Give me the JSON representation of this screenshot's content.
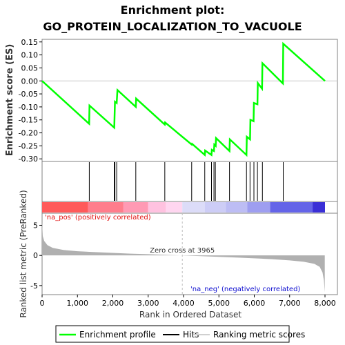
{
  "chart_data": {
    "type": "line",
    "title_line1": "Enrichment plot:",
    "title_line2": "GO_PROTEIN_LOCALIZATION_TO_VACUOLE",
    "es_ylabel": "Enrichment score (ES)",
    "metric_ylabel": "Ranked list metric (PreRanked)",
    "xlabel": "Rank in Ordered Dataset",
    "xlim": [
      0,
      8000
    ],
    "x_ticks": [
      0,
      1000,
      2000,
      3000,
      4000,
      5000,
      6000,
      7000,
      8000
    ],
    "x_tick_labels": [
      "0",
      "1,000",
      "2,000",
      "3,000",
      "4,000",
      "5,000",
      "6,000",
      "7,000",
      "8,000"
    ],
    "es_ylim": [
      -0.31,
      0.16
    ],
    "es_ticks": [
      0.15,
      0.1,
      0.05,
      0.0,
      -0.05,
      -0.1,
      -0.15,
      -0.2,
      -0.25,
      -0.3
    ],
    "es_tick_labels": [
      "0.15",
      "0.10",
      "0.05",
      "0.00",
      "-0.05",
      "-0.10",
      "-0.15",
      "-0.20",
      "-0.25",
      "-0.30"
    ],
    "metric_ylim": [
      -6.5,
      7
    ],
    "metric_ticks": [
      5,
      0,
      -5
    ],
    "metric_tick_labels": [
      "5",
      "0",
      "-5"
    ],
    "enrichment_profile": [
      [
        0,
        0.0
      ],
      [
        1330,
        -0.165
      ],
      [
        1340,
        -0.095
      ],
      [
        2040,
        -0.18
      ],
      [
        2050,
        -0.13
      ],
      [
        2060,
        -0.08
      ],
      [
        2110,
        -0.085
      ],
      [
        2130,
        -0.035
      ],
      [
        2650,
        -0.1
      ],
      [
        2660,
        -0.068
      ],
      [
        3470,
        -0.168
      ],
      [
        3480,
        -0.16
      ],
      [
        4230,
        -0.245
      ],
      [
        4240,
        -0.242
      ],
      [
        4600,
        -0.285
      ],
      [
        4610,
        -0.268
      ],
      [
        4790,
        -0.285
      ],
      [
        4800,
        -0.265
      ],
      [
        4860,
        -0.27
      ],
      [
        4870,
        -0.245
      ],
      [
        4910,
        -0.25
      ],
      [
        4920,
        -0.22
      ],
      [
        5300,
        -0.27
      ],
      [
        5310,
        -0.225
      ],
      [
        5780,
        -0.285
      ],
      [
        5790,
        -0.215
      ],
      [
        5880,
        -0.225
      ],
      [
        5890,
        -0.15
      ],
      [
        5980,
        -0.155
      ],
      [
        5990,
        -0.085
      ],
      [
        6090,
        -0.09
      ],
      [
        6100,
        -0.008
      ],
      [
        6220,
        -0.03
      ],
      [
        6230,
        0.068
      ],
      [
        6810,
        -0.01
      ],
      [
        6820,
        0.143
      ],
      [
        8000,
        0.0
      ]
    ],
    "hits": [
      1335,
      2040,
      2060,
      2110,
      2650,
      3470,
      4230,
      4600,
      4790,
      4860,
      4900,
      5300,
      5780,
      5880,
      5990,
      6090,
      6230,
      6820
    ],
    "zero_cross_rank": 3965,
    "zero_cross_label": "Zero cross at 3965",
    "pos_label": "'na_pos' (positively correlated)",
    "neg_label": "'na_neg' (negatively correlated)",
    "metric_curve": [
      [
        0,
        5.6
      ],
      [
        20,
        3.2
      ],
      [
        60,
        2.4
      ],
      [
        150,
        1.7
      ],
      [
        300,
        1.25
      ],
      [
        600,
        0.9
      ],
      [
        1000,
        0.7
      ],
      [
        1500,
        0.55
      ],
      [
        2000,
        0.42
      ],
      [
        2500,
        0.3
      ],
      [
        3000,
        0.2
      ],
      [
        3500,
        0.09
      ],
      [
        3965,
        0.0
      ],
      [
        4500,
        -0.12
      ],
      [
        5000,
        -0.24
      ],
      [
        5500,
        -0.35
      ],
      [
        6000,
        -0.48
      ],
      [
        6500,
        -0.62
      ],
      [
        7000,
        -0.82
      ],
      [
        7400,
        -1.05
      ],
      [
        7700,
        -1.4
      ],
      [
        7850,
        -1.9
      ],
      [
        7930,
        -2.8
      ],
      [
        7970,
        -4.2
      ],
      [
        7995,
        -6.1
      ]
    ],
    "color_bands": [
      {
        "from": 0,
        "to": 1300,
        "color": "#ff5a5a"
      },
      {
        "from": 1300,
        "to": 2300,
        "color": "#ff7d8c"
      },
      {
        "from": 2300,
        "to": 3000,
        "color": "#ff9ab4"
      },
      {
        "from": 3000,
        "to": 3500,
        "color": "#ffc2e0"
      },
      {
        "from": 3500,
        "to": 3965,
        "color": "#ffd6f0"
      },
      {
        "from": 3965,
        "to": 4600,
        "color": "#dcdcf8"
      },
      {
        "from": 4600,
        "to": 5200,
        "color": "#cdcdf6"
      },
      {
        "from": 5200,
        "to": 5800,
        "color": "#bdbdf4"
      },
      {
        "from": 5800,
        "to": 6450,
        "color": "#9e9ef0"
      },
      {
        "from": 6450,
        "to": 7650,
        "color": "#6464e8"
      },
      {
        "from": 7650,
        "to": 8000,
        "color": "#3a2fd6"
      }
    ]
  },
  "legend": {
    "enrichment": "Enrichment profile",
    "hits": "Hits",
    "ranking": "Ranking metric scores"
  },
  "colors": {
    "profile": "#00ff00",
    "hits": "#000000",
    "metric_fill": "#b0b0b0",
    "zero_line": "#c0c0c0",
    "pos_text": "#e01010",
    "neg_text": "#1010d0"
  }
}
